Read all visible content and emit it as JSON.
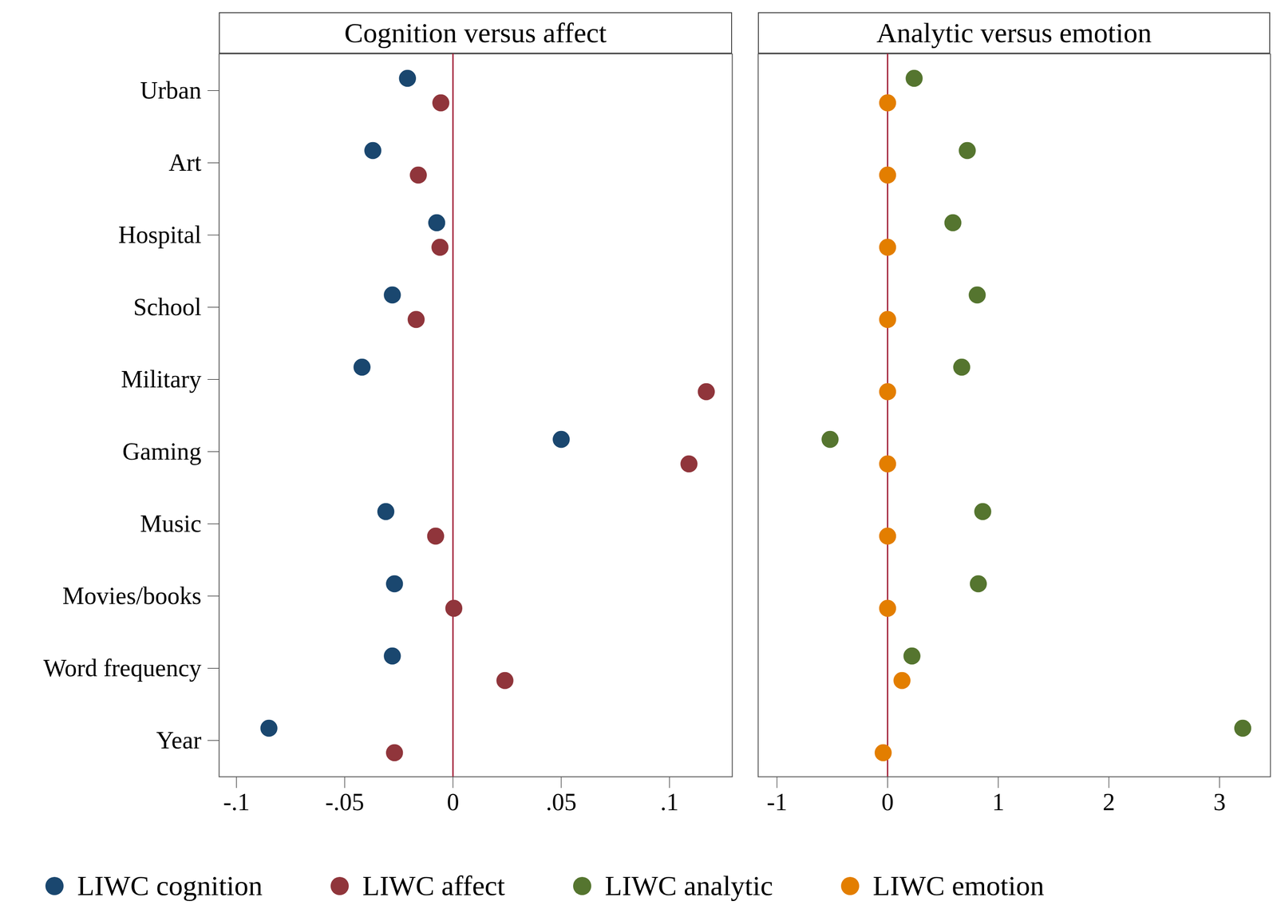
{
  "chart_data": [
    {
      "type": "scatter",
      "title": "Cognition versus affect",
      "legend": "bottom",
      "categories": [
        "Urban",
        "Art",
        "Hospital",
        "School",
        "Military",
        "Gaming",
        "Music",
        "Movies/books",
        "Word frequency",
        "Year"
      ],
      "series": [
        {
          "name": "LIWC cognition",
          "color": "#1a476f",
          "values": [
            -0.021,
            -0.037,
            -0.0075,
            -0.028,
            -0.042,
            0.05,
            -0.031,
            -0.027,
            -0.028,
            -0.085
          ]
        },
        {
          "name": "LIWC affect",
          "color": "#90353b",
          "values": [
            -0.0056,
            -0.016,
            -0.006,
            -0.017,
            0.117,
            0.109,
            -0.008,
            0.0004,
            0.024,
            -0.027
          ]
        }
      ],
      "xlim": [
        -0.108,
        0.129
      ],
      "xticks": [
        {
          "value": -0.1,
          "label": "-.1"
        },
        {
          "value": -0.05,
          "label": "-.05"
        },
        0,
        {
          "value": 0.05,
          "label": ".05"
        },
        {
          "value": 0.1,
          "label": ".1"
        }
      ],
      "reference_x": 0
    },
    {
      "type": "scatter",
      "title": "Analytic versus emotion",
      "legend": "bottom",
      "categories": [
        "Urban",
        "Art",
        "Hospital",
        "School",
        "Military",
        "Gaming",
        "Music",
        "Movies/books",
        "Word frequency",
        "Year"
      ],
      "tick_labels": "x",
      "series": [
        {
          "name": "LIWC analytic",
          "color": "#55752f",
          "values": [
            0.24,
            0.72,
            0.59,
            0.81,
            0.67,
            -0.52,
            0.86,
            0.82,
            0.22,
            3.21
          ]
        },
        {
          "name": "LIWC emotion",
          "color": "#e37e00",
          "values": [
            0.0,
            0.0,
            0.0,
            0.0,
            0.0,
            0.0,
            0.0,
            0.0,
            0.13,
            -0.04
          ]
        }
      ],
      "xlim": [
        -1.17,
        3.46
      ],
      "xticks": [
        -1,
        0,
        1,
        2,
        3
      ],
      "reference_x": 0
    }
  ]
}
